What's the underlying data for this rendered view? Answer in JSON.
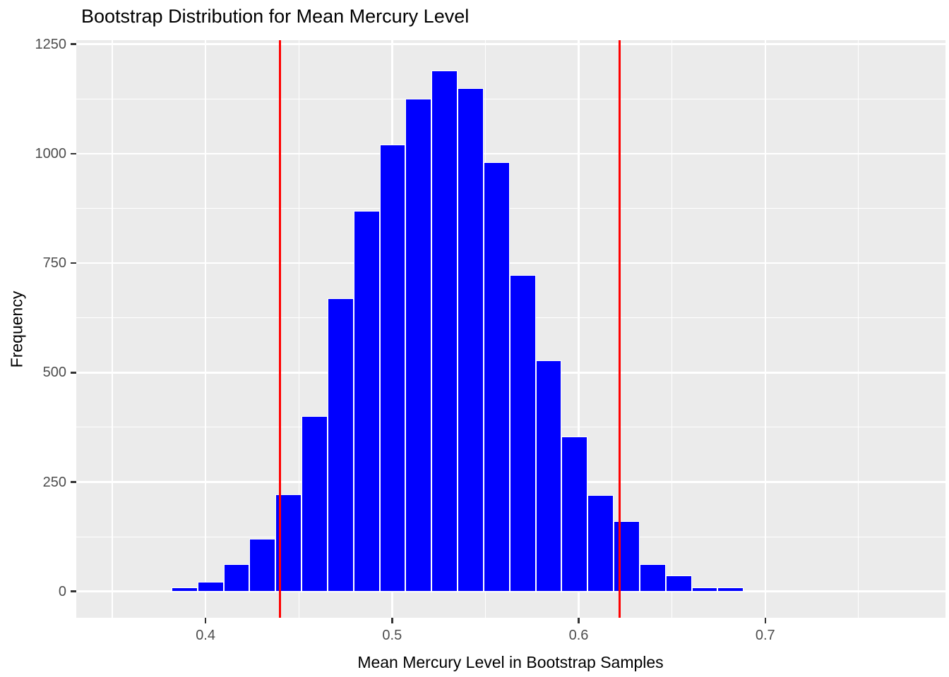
{
  "chart_data": {
    "type": "bar",
    "subtype": "histogram",
    "title": "Bootstrap Distribution for Mean Mercury Level",
    "xlabel": "Mean Mercury Level in Bootstrap Samples",
    "ylabel": "Frequency",
    "xlim": [
      0.3307,
      0.7966
    ],
    "ylim": [
      -60,
      1259
    ],
    "x_tick_values": [
      0.4,
      0.5,
      0.6,
      0.7
    ],
    "x_tick_labels": [
      "0.4",
      "0.5",
      "0.6",
      "0.7"
    ],
    "x_minor_gridlines": [
      0.35,
      0.45,
      0.55,
      0.65,
      0.75
    ],
    "y_tick_values": [
      0,
      250,
      500,
      750,
      1000,
      1250
    ],
    "y_tick_labels": [
      "0",
      "250",
      "500",
      "750",
      "1000",
      "1250"
    ],
    "y_minor_gridlines": [
      125,
      375,
      625,
      875,
      1125
    ],
    "grid": "on",
    "legend": "none",
    "bins": {
      "start": 0.3539,
      "width": 0.013939,
      "counts": [
        3,
        2,
        10,
        22,
        62,
        120,
        222,
        400,
        670,
        870,
        1020,
        1125,
        1190,
        1150,
        980,
        722,
        528,
        354,
        220,
        160,
        63,
        36,
        9,
        9
      ]
    },
    "vlines": {
      "values": [
        0.44,
        0.622
      ],
      "meaning": "bootstrap confidence interval bounds"
    },
    "colors": {
      "bar_fill": "#0000FF",
      "bar_border": "#FFFFFF",
      "vline": "#FF0000",
      "panel_bg": "#EBEBEB",
      "gridline": "#FFFFFF",
      "tick_label": "#4D4D4D",
      "tick_mark": "#333333",
      "text": "#000000"
    }
  }
}
